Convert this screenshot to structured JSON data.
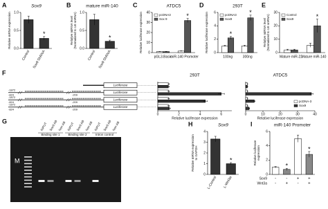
{
  "chart_data": [
    {
      "type": "bar",
      "panel": "A",
      "title": "Sox9",
      "ylabel": [
        "Relative mRNA expression"
      ],
      "categories": [
        "Control",
        "Sox9 ShRNA"
      ],
      "values": [
        0.8,
        0.28
      ],
      "errors": [
        0.1,
        0.05
      ],
      "colors": [
        "#333333",
        "#333333"
      ],
      "ylim": [
        0,
        1
      ],
      "yticks": [
        {
          "value": 0,
          "label": "0.0"
        },
        0.5,
        {
          "value": 1,
          "label": "1.0"
        }
      ],
      "annotations": [
        {
          "text": "*",
          "category": 1
        }
      ]
    },
    {
      "type": "bar",
      "panel": "B",
      "title": "mature miR-140",
      "ylabel": [
        "Relative miRNA level",
        "(Normalized to U6 snRNA)"
      ],
      "categories": [
        "Control",
        "Sox9 ShRNA"
      ],
      "values": [
        0.8,
        0.2
      ],
      "errors": [
        0.15,
        0.03
      ],
      "colors": [
        "#333333",
        "#333333"
      ],
      "ylim": [
        0,
        1
      ],
      "yticks": [
        {
          "value": 0,
          "label": "0.0"
        },
        0.5,
        {
          "value": 1,
          "label": "1.0"
        }
      ],
      "annotations": [
        {
          "text": "*",
          "category": 1
        }
      ]
    },
    {
      "type": "bar",
      "panel": "C",
      "title": "ATDC5",
      "ylabel": [
        "Relative luciferase expression"
      ],
      "categories": [
        "pGL3.Basic",
        "miR-140 Promoter"
      ],
      "series": [
        {
          "name": "pcDNA3",
          "color": "#ffffff",
          "values": [
            1,
            1.5
          ],
          "errors": [
            0.2,
            0.3
          ]
        },
        {
          "name": "Sox 9",
          "color": "#555555",
          "values": [
            1,
            32
          ],
          "errors": [
            0.2,
            2
          ]
        }
      ],
      "ylim": [
        0,
        40
      ],
      "yticks": [
        0,
        10,
        20,
        30,
        40
      ],
      "legend": "upper left",
      "annotations": [
        {
          "text": "*",
          "category": 1,
          "series": 1
        }
      ]
    },
    {
      "type": "bar",
      "panel": "D",
      "title": "293T",
      "ylabel": [
        "Relative luciferase expression"
      ],
      "categories": [
        "100ng",
        "300ng"
      ],
      "series": [
        {
          "name": "pcDNA3",
          "color": "#ffffff",
          "values": [
            1,
            1
          ],
          "errors": [
            0.1,
            0.1
          ]
        },
        {
          "name": "Sox9",
          "color": "#555555",
          "values": [
            2.2,
            5.2
          ],
          "errors": [
            0.2,
            0.4
          ]
        }
      ],
      "ylim": [
        0,
        6
      ],
      "yticks": [
        0,
        2,
        4,
        6
      ],
      "legend": "upper left",
      "annotations": [
        {
          "text": "*",
          "category": 0,
          "series": 1
        },
        {
          "text": "*",
          "category": 1,
          "series": 1
        }
      ]
    },
    {
      "type": "bar",
      "panel": "E",
      "ylabel": [
        "Relative miRNA level",
        "(Normalized to U6 snRNA)"
      ],
      "categories": [
        "Mature miR-22",
        "Mature miR-140"
      ],
      "series": [
        {
          "name": "Control",
          "color": "#ffffff",
          "values": [
            2,
            5.5
          ],
          "errors": [
            0.5,
            1.5
          ]
        },
        {
          "name": "Sox9",
          "color": "#555555",
          "values": [
            2,
            20
          ],
          "errors": [
            0.5,
            5
          ]
        }
      ],
      "ylim": [
        0,
        30
      ],
      "yticks": [
        0,
        10,
        20,
        30
      ],
      "legend": "upper left",
      "annotations": [
        {
          "text": "*",
          "category": 1,
          "series": 1
        }
      ]
    },
    {
      "type": "hbar",
      "panel": "F",
      "title": "293T",
      "xlabel": "Relative luciferase expression",
      "categories": [
        null,
        null,
        null,
        null
      ],
      "series": [
        {
          "name": "pcDNA-3",
          "color": "#ffffff",
          "values": [
            1,
            1,
            1,
            1
          ],
          "errors": [
            0.1,
            0.1,
            0.1,
            0.1
          ]
        },
        {
          "name": "Sox9",
          "color": "#333333",
          "values": [
            1,
            6,
            4.5,
            1.1
          ],
          "errors": [
            0.1,
            0.3,
            0.2,
            0.1
          ]
        }
      ],
      "xlim": [
        0,
        7
      ],
      "xticks": [
        0,
        2,
        4,
        6
      ],
      "legend": "none"
    },
    {
      "type": "hbar",
      "title": "ATDC5",
      "xlabel": "Relative luciferase expression",
      "categories": [
        null,
        null,
        null,
        null
      ],
      "series": [
        {
          "name": "pcDNA-3",
          "color": "#ffffff",
          "values": [
            1,
            1,
            1,
            1
          ],
          "errors": [
            0.2,
            0.2,
            0.2,
            0.2
          ]
        },
        {
          "name": "Sox9",
          "color": "#333333",
          "values": [
            1,
            38,
            5,
            2
          ],
          "errors": [
            0.2,
            1,
            0.5,
            0.3
          ]
        }
      ],
      "xlim": [
        0,
        40
      ],
      "xticks": [
        0,
        10,
        20,
        30,
        40
      ],
      "legend": "lower right"
    },
    {
      "type": "bar",
      "panel": "H",
      "title": "Sox9",
      "ylabel": [
        "Relative mRNA expression",
        "to GAPDH"
      ],
      "categories": [
        "L-Control",
        "L-Wnt3a"
      ],
      "values": [
        3.3,
        1.0
      ],
      "errors": [
        0.25,
        0.1
      ],
      "colors": [
        "#333333",
        "#333333"
      ],
      "ylim": [
        0,
        4
      ],
      "yticks": [
        0,
        1,
        2,
        3,
        4
      ],
      "annotations": [
        {
          "text": "*",
          "category": 1
        }
      ]
    },
    {
      "type": "bar",
      "panel": "I",
      "title": "miR-140 Promoter",
      "ylabel": [
        "Relative luciferase",
        "expression"
      ],
      "categories": [
        null,
        null,
        null,
        null
      ],
      "values": [
        1,
        0.7,
        5,
        2.8
      ],
      "errors": [
        0.1,
        0.15,
        0.5,
        0.4
      ],
      "colors": [
        "#ffffff",
        "#888888",
        "#ffffff",
        "#888888"
      ],
      "ylim": [
        0,
        6
      ],
      "yticks": [
        0,
        2,
        4,
        6
      ],
      "conditions": [
        {
          "name": "Sox9",
          "marks": [
            "-",
            "-",
            "+",
            "+"
          ]
        },
        {
          "name": "Wnt3a",
          "marks": [
            "-",
            "+",
            "-",
            "+"
          ]
        }
      ],
      "annotations": [
        {
          "text": "*",
          "category": 1
        },
        {
          "text": "*",
          "category": 3
        }
      ]
    }
  ],
  "figure_f": {
    "constructs": [
      {
        "box": "Luciferase"
      },
      {
        "start": "-1872",
        "mid": "-824",
        "end": "-209",
        "box": "Luciferase"
      },
      {
        "start": "-1872",
        "mid": "-824",
        "end": "-209",
        "box": "Luciferase"
      },
      {
        "start": "-1872",
        "mid": "-824",
        "end": "-209",
        "box": "Luciferase"
      }
    ]
  },
  "figure_g": {
    "panel": "G",
    "marker": "M",
    "lanes": [
      "INPUT",
      "Sox9 AB",
      "Non AB",
      "INPUT",
      "Sox9 AB",
      "Non AB",
      "INPUT",
      "Sox9 AB",
      "Non AB"
    ],
    "groups": [
      "Binding site 1",
      "Binding site 2",
      "Intron control"
    ]
  }
}
